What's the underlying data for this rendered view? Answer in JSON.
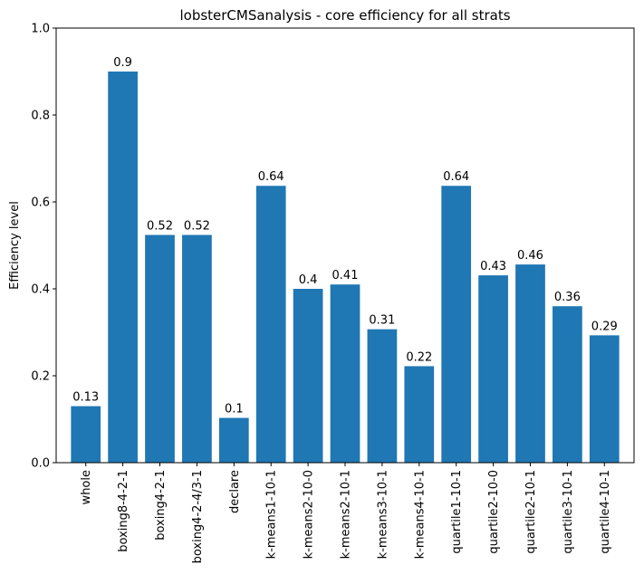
{
  "chart_data": {
    "type": "bar",
    "title": "lobsterCMSanalysis - core efficiency for all strats",
    "xlabel": "",
    "ylabel": "Efficiency level",
    "ylim": [
      0,
      1.0
    ],
    "yticks": [
      "0.0",
      "0.2",
      "0.4",
      "0.6",
      "0.8",
      "1.0"
    ],
    "grid": false,
    "bar_color": "#1f77b4",
    "categories": [
      "whole",
      "boxing8-4-2-1",
      "boxing4-2-1",
      "boxing4-2-4/3-1",
      "declare",
      "k-means1-10-1",
      "k-means2-10-0",
      "k-means2-10-1",
      "k-means3-10-1",
      "k-means4-10-1",
      "quartile1-10-1",
      "quartile2-10-0",
      "quartile2-10-1",
      "quartile3-10-1",
      "quartile4-10-1"
    ],
    "values": [
      0.13,
      0.9,
      0.524,
      0.524,
      0.103,
      0.637,
      0.4,
      0.41,
      0.307,
      0.222,
      0.637,
      0.431,
      0.456,
      0.36,
      0.293
    ],
    "labels": [
      "0.13",
      "0.9",
      "0.52",
      "0.52",
      "0.1",
      "0.64",
      "0.4",
      "0.41",
      "0.31",
      "0.22",
      "0.64",
      "0.43",
      "0.46",
      "0.36",
      "0.29"
    ]
  }
}
